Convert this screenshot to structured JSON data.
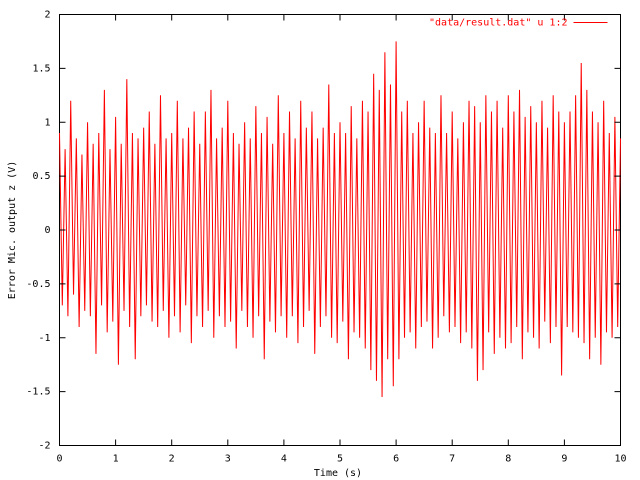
{
  "chart_data": {
    "type": "line",
    "xlabel": "Time (s)",
    "ylabel": "Error Mic. output z (V)",
    "legend": "upper right",
    "xlim": [
      0,
      10
    ],
    "ylim": [
      -2,
      2
    ],
    "xticks": [
      0,
      1,
      2,
      3,
      4,
      5,
      6,
      7,
      8,
      9,
      10
    ],
    "yticks": [
      -2,
      -1.5,
      -1,
      -0.5,
      0,
      0.5,
      1,
      1.5,
      2
    ],
    "x": [
      0,
      0.05,
      0.1,
      0.15,
      0.2,
      0.25,
      0.3,
      0.35,
      0.4,
      0.45,
      0.5,
      0.55,
      0.6,
      0.65,
      0.7,
      0.75,
      0.8,
      0.85,
      0.9,
      0.95,
      1,
      1.05,
      1.1,
      1.15,
      1.2,
      1.25,
      1.3,
      1.35,
      1.4,
      1.45,
      1.5,
      1.55,
      1.6,
      1.65,
      1.7,
      1.75,
      1.8,
      1.85,
      1.9,
      1.95,
      2,
      2.05,
      2.1,
      2.15,
      2.2,
      2.25,
      2.3,
      2.35,
      2.4,
      2.45,
      2.5,
      2.55,
      2.6,
      2.65,
      2.7,
      2.75,
      2.8,
      2.85,
      2.9,
      2.95,
      3,
      3.05,
      3.1,
      3.15,
      3.2,
      3.25,
      3.3,
      3.35,
      3.4,
      3.45,
      3.5,
      3.55,
      3.6,
      3.65,
      3.7,
      3.75,
      3.8,
      3.85,
      3.9,
      3.95,
      4,
      4.05,
      4.1,
      4.15,
      4.2,
      4.25,
      4.3,
      4.35,
      4.4,
      4.45,
      4.5,
      4.55,
      4.6,
      4.65,
      4.7,
      4.75,
      4.8,
      4.85,
      4.9,
      4.95,
      5,
      5.05,
      5.1,
      5.15,
      5.2,
      5.25,
      5.3,
      5.35,
      5.4,
      5.45,
      5.5,
      5.55,
      5.6,
      5.65,
      5.7,
      5.75,
      5.8,
      5.85,
      5.9,
      5.95,
      6,
      6.05,
      6.1,
      6.15,
      6.2,
      6.25,
      6.3,
      6.35,
      6.4,
      6.45,
      6.5,
      6.55,
      6.6,
      6.65,
      6.7,
      6.75,
      6.8,
      6.85,
      6.9,
      6.95,
      7,
      7.05,
      7.1,
      7.15,
      7.2,
      7.25,
      7.3,
      7.35,
      7.4,
      7.45,
      7.5,
      7.55,
      7.6,
      7.65,
      7.7,
      7.75,
      7.8,
      7.85,
      7.9,
      7.95,
      8,
      8.05,
      8.1,
      8.15,
      8.2,
      8.25,
      8.3,
      8.35,
      8.4,
      8.45,
      8.5,
      8.55,
      8.6,
      8.65,
      8.7,
      8.75,
      8.8,
      8.85,
      8.9,
      8.95,
      9,
      9.05,
      9.1,
      9.15,
      9.2,
      9.25,
      9.3,
      9.35,
      9.4,
      9.45,
      9.5,
      9.55,
      9.6,
      9.65,
      9.7,
      9.75,
      9.8,
      9.85,
      9.9,
      9.95,
      10
    ],
    "series": [
      {
        "name": "\"data/result.dat\" u 1:2",
        "color": "#ff0000",
        "values": [
          0.9,
          -0.7,
          0.75,
          -0.8,
          1.2,
          -0.6,
          0.85,
          -0.9,
          0.7,
          -0.75,
          1.0,
          -0.8,
          0.8,
          -1.15,
          0.9,
          -0.7,
          1.3,
          -0.95,
          0.75,
          -0.85,
          1.05,
          -1.25,
          0.8,
          -0.75,
          1.4,
          -0.9,
          0.9,
          -1.2,
          0.85,
          -0.8,
          0.95,
          -0.7,
          1.1,
          -0.85,
          0.8,
          -0.9,
          1.25,
          -0.75,
          0.85,
          -1.0,
          0.9,
          -0.8,
          1.2,
          -0.95,
          0.85,
          -0.7,
          0.95,
          -1.05,
          1.1,
          -0.8,
          0.8,
          -0.9,
          1.1,
          -0.75,
          1.3,
          -1.0,
          0.85,
          -0.8,
          0.95,
          -0.9,
          1.2,
          -0.85,
          0.9,
          -1.1,
          0.8,
          -0.75,
          1.0,
          -0.9,
          0.85,
          -1.0,
          1.15,
          -0.8,
          0.9,
          -1.2,
          1.05,
          -0.85,
          0.8,
          -0.95,
          1.25,
          -0.8,
          0.9,
          -1.0,
          1.1,
          -0.8,
          0.85,
          -1.05,
          1.2,
          -0.9,
          0.95,
          -0.75,
          1.1,
          -1.15,
          0.85,
          -0.9,
          0.95,
          -0.8,
          1.35,
          -1.0,
          0.9,
          -1.05,
          1.0,
          -0.85,
          0.9,
          -1.2,
          1.15,
          -0.95,
          0.85,
          -1.0,
          1.2,
          -1.1,
          1.1,
          -1.3,
          1.45,
          -1.4,
          1.3,
          -1.55,
          1.65,
          -1.2,
          1.35,
          -1.45,
          1.75,
          -1.2,
          1.1,
          -1.0,
          1.2,
          -0.95,
          0.9,
          -1.1,
          1.0,
          -0.9,
          1.2,
          -0.85,
          0.95,
          -1.1,
          0.9,
          -1.0,
          1.25,
          -0.8,
          0.9,
          -0.95,
          1.1,
          -0.9,
          0.85,
          -1.05,
          1.0,
          -0.95,
          1.2,
          -1.1,
          1.15,
          -1.4,
          1.0,
          -1.3,
          1.25,
          -0.95,
          1.1,
          -1.15,
          1.2,
          -1.0,
          0.95,
          -1.1,
          1.25,
          -1.05,
          1.1,
          -0.9,
          1.3,
          -1.2,
          1.05,
          -0.95,
          1.15,
          -1.0,
          1.0,
          -1.1,
          1.2,
          -0.85,
          0.95,
          -1.05,
          1.25,
          -0.9,
          1.1,
          -1.35,
          1.0,
          -0.9,
          1.1,
          -0.95,
          1.25,
          -1.0,
          1.55,
          -1.05,
          1.3,
          -1.2,
          1.1,
          -1.0,
          1.0,
          -1.25,
          1.2,
          -0.95,
          0.9,
          -1.0,
          1.05,
          -0.9,
          0.85
        ]
      }
    ]
  }
}
